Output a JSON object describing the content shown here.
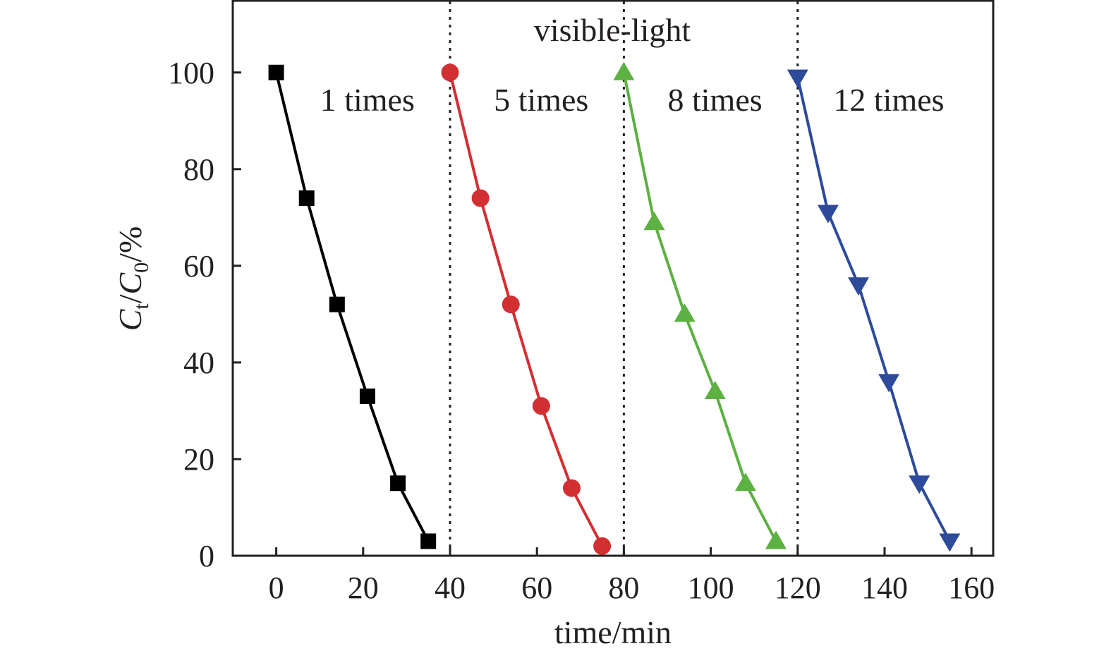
{
  "chart_data": {
    "type": "scatter",
    "xlabel": "time/min",
    "ylabel": {
      "c": "C",
      "sub_t": "t",
      "slash": "/",
      "sub_0": "0",
      "unit": "/%"
    },
    "xlim": [
      -10,
      165
    ],
    "ylim": [
      0,
      115
    ],
    "xticks": [
      0,
      20,
      40,
      60,
      80,
      100,
      120,
      140,
      160
    ],
    "yticks": [
      0,
      20,
      40,
      60,
      80,
      100
    ],
    "grid": false,
    "dividers": [
      40,
      80,
      120
    ],
    "annotation": "visible-light",
    "series": [
      {
        "name": "1 times",
        "marker": "square",
        "color": "#000000",
        "x": [
          0,
          7,
          14,
          21,
          28,
          35
        ],
        "y": [
          100,
          74,
          52,
          33,
          15,
          3
        ]
      },
      {
        "name": "5 times",
        "marker": "circle",
        "color": "#d22f33",
        "x": [
          40,
          47,
          54,
          61,
          68,
          75
        ],
        "y": [
          100,
          74,
          52,
          31,
          14,
          2
        ]
      },
      {
        "name": "8 times",
        "marker": "triangle-up",
        "color": "#5db042",
        "x": [
          80,
          87,
          94,
          101,
          108,
          115
        ],
        "y": [
          100,
          69,
          50,
          34,
          15,
          3
        ]
      },
      {
        "name": "12 times",
        "marker": "triangle-down",
        "color": "#2d4a9b",
        "x": [
          120,
          127,
          134,
          141,
          148,
          155
        ],
        "y": [
          99,
          71,
          56,
          36,
          15,
          3
        ]
      }
    ]
  }
}
